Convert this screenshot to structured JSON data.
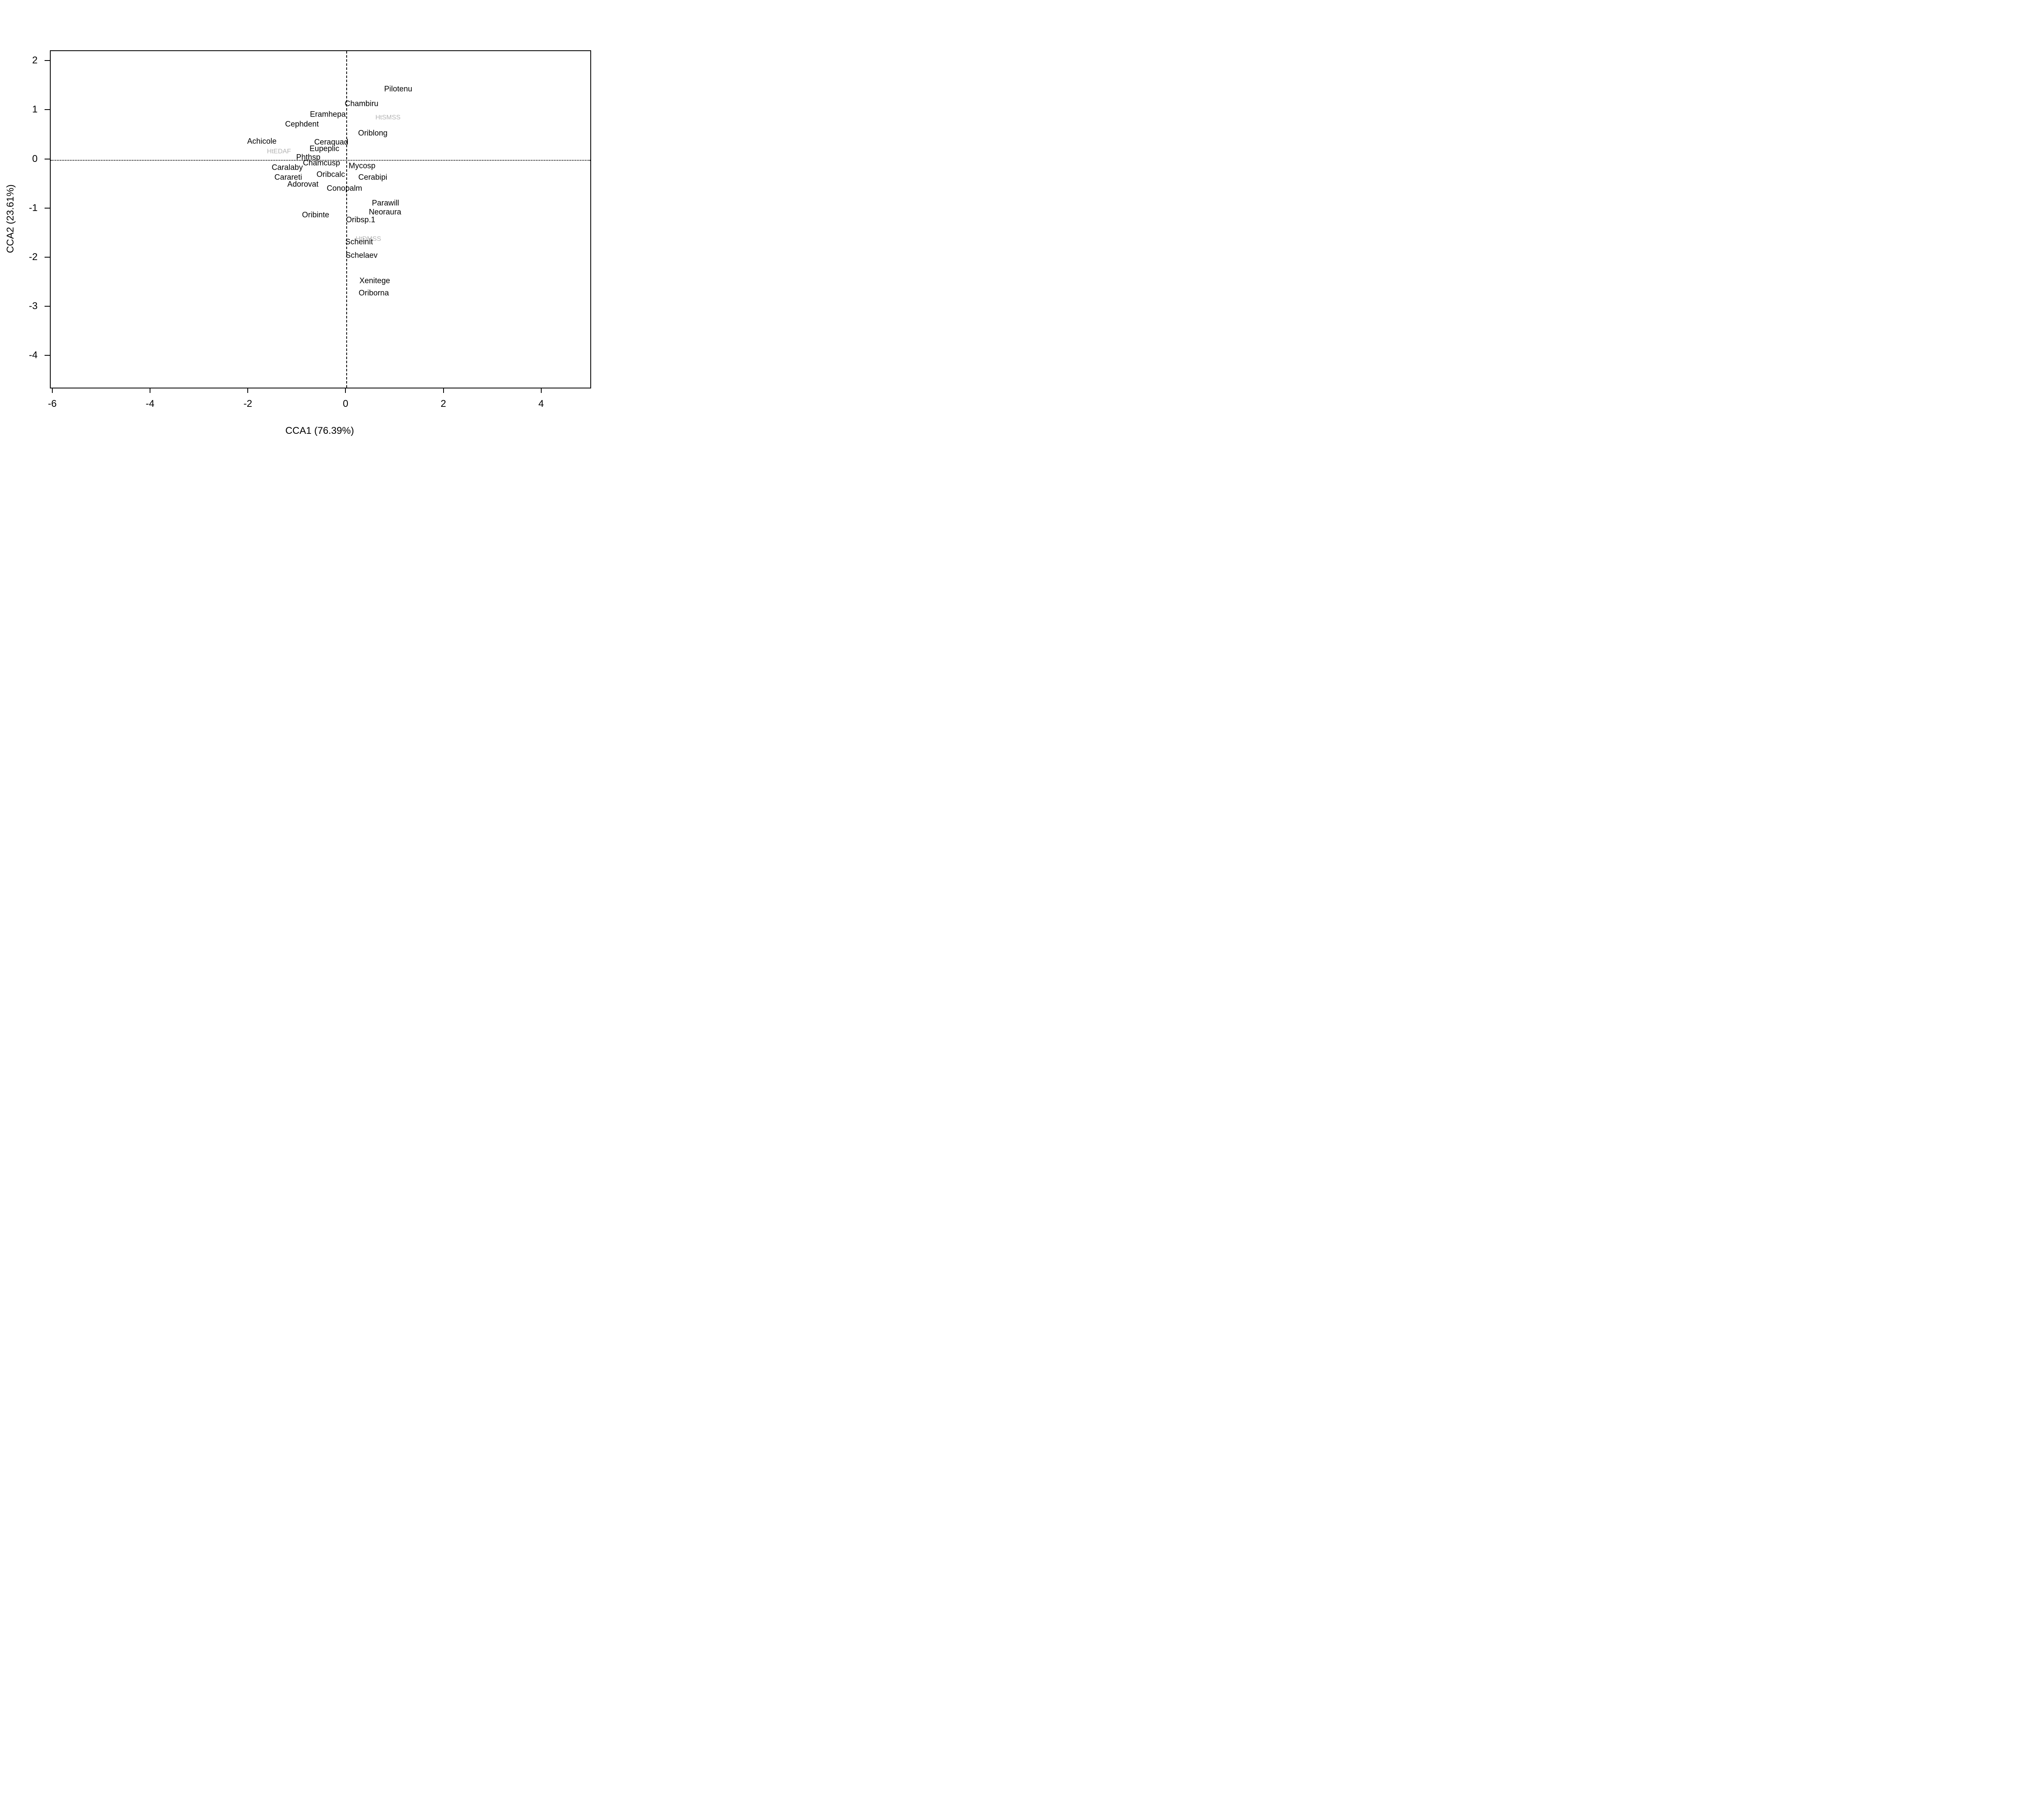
{
  "figure": {
    "background_color": "#ffffff",
    "frame_color": "#000000",
    "species_label_color": "#000000",
    "environment_label_color": "#b3b3b3"
  },
  "chart_data": {
    "type": "scatter",
    "title": "",
    "xlabel": "CCA1 (76.39%)",
    "ylabel": "CCA2 (23.61%)",
    "xlim": [
      -6.05,
      4.99
    ],
    "ylim": [
      -4.64,
      2.21
    ],
    "x_ticks": [
      -6,
      -4,
      -2,
      0,
      2,
      4
    ],
    "y_ticks": [
      2,
      1,
      0,
      -1,
      -2,
      -3,
      -4
    ],
    "grid": false,
    "legend": "none",
    "reference_lines": [
      {
        "axis": "h",
        "value": 0,
        "style": "dotted"
      },
      {
        "axis": "v",
        "value": 0,
        "style": "dashed"
      }
    ],
    "series": [
      {
        "name": "species_scores",
        "marker": "text-label",
        "color": "#000000",
        "points": [
          {
            "label": "Pilotenu",
            "x": 1.06,
            "y": 1.44
          },
          {
            "label": "Chambiru",
            "x": 0.31,
            "y": 1.14
          },
          {
            "label": "Eramhepa",
            "x": -0.38,
            "y": 0.92
          },
          {
            "label": "Cephdent",
            "x": -0.91,
            "y": 0.72
          },
          {
            "label": "Oriblong",
            "x": 0.54,
            "y": 0.54
          },
          {
            "label": "Achicole",
            "x": -1.73,
            "y": 0.37
          },
          {
            "label": "Ceraquad",
            "x": -0.31,
            "y": 0.35
          },
          {
            "label": "Eupeplic",
            "x": -0.45,
            "y": 0.22
          },
          {
            "label": "Phthsp",
            "x": -0.78,
            "y": 0.05
          },
          {
            "label": "Chamcusp",
            "x": -0.51,
            "y": -0.07
          },
          {
            "label": "Mycosp",
            "x": 0.32,
            "y": -0.13
          },
          {
            "label": "Caralaby",
            "x": -1.21,
            "y": -0.16
          },
          {
            "label": "Oribcalc",
            "x": -0.32,
            "y": -0.3
          },
          {
            "label": "Cerabipi",
            "x": 0.54,
            "y": -0.36
          },
          {
            "label": "Carareti",
            "x": -1.19,
            "y": -0.36
          },
          {
            "label": "Adorovat",
            "x": -0.89,
            "y": -0.5
          },
          {
            "label": "Conopalm",
            "x": -0.04,
            "y": -0.59
          },
          {
            "label": "Parawill",
            "x": 0.8,
            "y": -0.89
          },
          {
            "label": "Neoraura",
            "x": 0.79,
            "y": -1.07
          },
          {
            "label": "Oribinte",
            "x": -0.63,
            "y": -1.13
          },
          {
            "label": "Oribsp.1",
            "x": 0.29,
            "y": -1.23
          },
          {
            "label": "Scheinit",
            "x": 0.26,
            "y": -1.68
          },
          {
            "label": "Schelaev",
            "x": 0.31,
            "y": -1.95
          },
          {
            "label": "Xenitege",
            "x": 0.58,
            "y": -2.47
          },
          {
            "label": "Oriborna",
            "x": 0.56,
            "y": -2.72
          }
        ]
      },
      {
        "name": "environment_scores",
        "marker": "text-label",
        "color": "#b3b3b3",
        "points": [
          {
            "label": "HtSMSS",
            "x": 0.85,
            "y": 0.85
          },
          {
            "label": "HtEDAF",
            "x": -1.38,
            "y": 0.16
          },
          {
            "label": "HtDMSS",
            "x": 0.45,
            "y": -1.62
          }
        ]
      }
    ]
  }
}
